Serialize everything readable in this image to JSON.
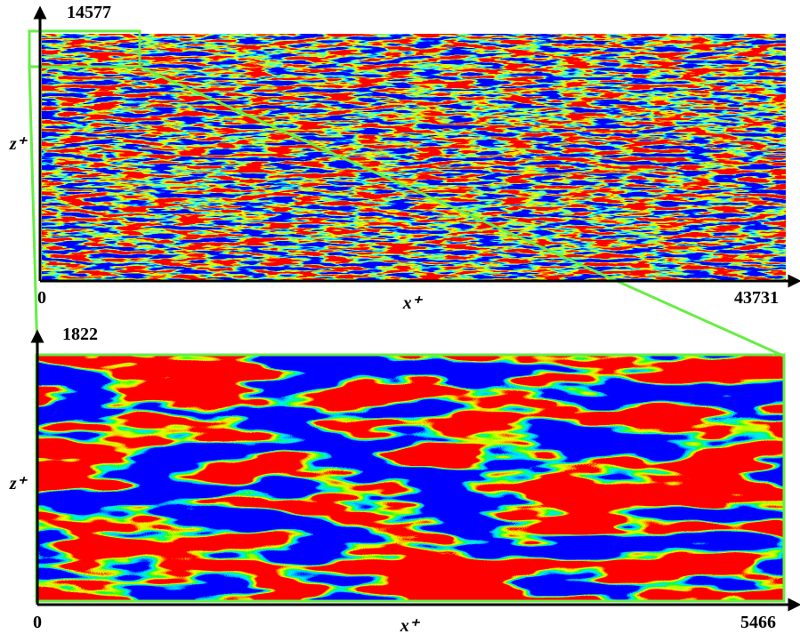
{
  "chart_data": [
    {
      "type": "contour",
      "xlabel": "x⁺",
      "ylabel": "z⁺",
      "xlim": [
        0,
        43731
      ],
      "ylim": [
        0,
        14577
      ],
      "xticks": [
        0,
        43731
      ],
      "yticks": [
        14577
      ]
    },
    {
      "type": "contour",
      "xlabel": "x⁺",
      "ylabel": "z⁺",
      "xlim": [
        0,
        5466
      ],
      "ylim": [
        0,
        1822
      ],
      "xticks": [
        0,
        5466
      ],
      "yticks": [
        1822
      ]
    }
  ]
}
